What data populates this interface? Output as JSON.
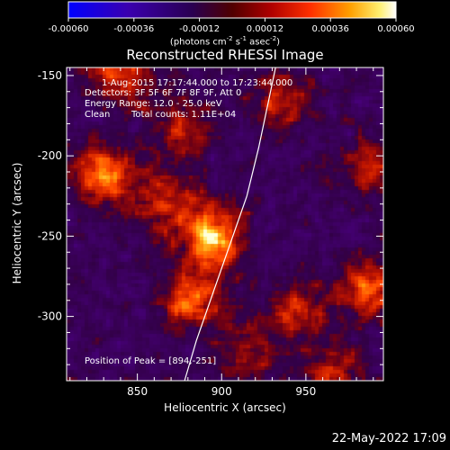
{
  "chart_data": {
    "type": "heatmap",
    "title": "Reconstructed RHESSI Image",
    "xlabel": "Heliocentric X (arcsec)",
    "ylabel": "Heliocentric Y (arcsec)",
    "xlim": [
      808,
      996
    ],
    "ylim": [
      -340,
      -145
    ],
    "x_ticks": [
      850,
      900,
      950
    ],
    "y_ticks": [
      -150,
      -200,
      -250,
      -300
    ],
    "colorbar": {
      "ticks": [
        "-0.00060",
        "-0.00036",
        "-0.00012",
        "0.00012",
        "0.00036",
        "0.00060"
      ],
      "range": [
        -0.0006,
        0.0006
      ],
      "unit_label": "(photons cm",
      "unit_sup1": "-2",
      "unit_mid": " s",
      "unit_sup2": "-1",
      "unit_end": " asec",
      "unit_sup3": "-2",
      "unit_close": ")",
      "colors": [
        "#0000ff",
        "#4000a0",
        "#300050",
        "#500000",
        "#a01000",
        "#ff4000",
        "#ff9000",
        "#ffe040",
        "#ffffff"
      ]
    },
    "annotations": {
      "time": "1-Aug-2015 17:17:44.000 to 17:23:44.000",
      "detectors": "Detectors: 3F 5F 6F 7F 8F 9F, Att 0",
      "energy": "Energy Range: 12.0 - 25.0 keV",
      "clean": "Clean",
      "counts": "Total counts: 1.11E+04",
      "peak": "Position of Peak = [894,-251]"
    },
    "peak": [
      894,
      -251
    ],
    "sources": [
      {
        "x": 894,
        "y": -251,
        "strength": 1.0
      },
      {
        "x": 830,
        "y": -213,
        "strength": 0.8
      },
      {
        "x": 883,
        "y": -290,
        "strength": 0.75
      },
      {
        "x": 988,
        "y": -282,
        "strength": 0.7
      },
      {
        "x": 840,
        "y": -150,
        "strength": 0.65
      },
      {
        "x": 877,
        "y": -182,
        "strength": 0.45
      },
      {
        "x": 945,
        "y": -297,
        "strength": 0.5
      },
      {
        "x": 868,
        "y": -228,
        "strength": 0.55
      },
      {
        "x": 935,
        "y": -165,
        "strength": 0.45
      },
      {
        "x": 965,
        "y": -335,
        "strength": 0.45
      },
      {
        "x": 990,
        "y": -205,
        "strength": 0.45
      },
      {
        "x": 915,
        "y": -322,
        "strength": 0.4
      }
    ],
    "limb": [
      [
        878,
        -340
      ],
      [
        885,
        -315
      ],
      [
        895,
        -285
      ],
      [
        905,
        -255
      ],
      [
        915,
        -225
      ],
      [
        922,
        -195
      ],
      [
        928,
        -165
      ],
      [
        932,
        -145
      ]
    ]
  },
  "footer": {
    "date": "22-May-2022 17:09"
  }
}
